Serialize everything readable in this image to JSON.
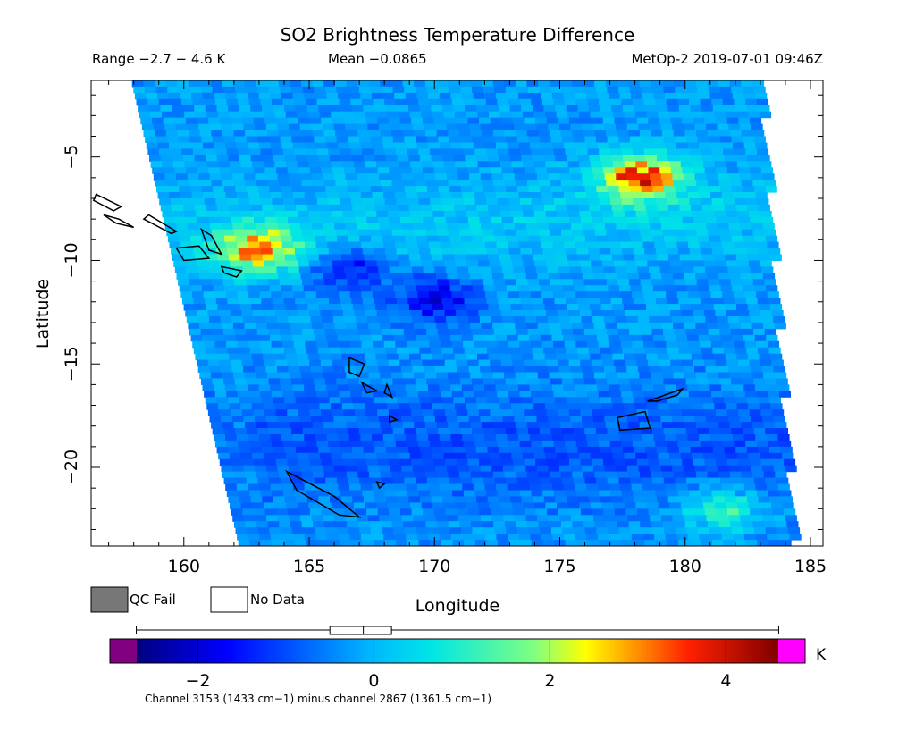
{
  "chart_data": {
    "type": "heatmap",
    "title": "SO2 Brightness Temperature Difference",
    "subtitle_left": "Range −2.7 − 4.6 K",
    "subtitle_mid": "Mean −0.0865",
    "subtitle_right": "MetOp-2 2019-07-01 09:46Z",
    "xlabel": "Longitude",
    "ylabel": "Latitude",
    "xlim": [
      156.3,
      185.5
    ],
    "ylim": [
      -23.8,
      -1.3
    ],
    "xticks": [
      160,
      165,
      170,
      175,
      180,
      185
    ],
    "yticks": [
      -5,
      -10,
      -15,
      -20
    ],
    "xtick_labels": [
      "160",
      "165",
      "170",
      "175",
      "180",
      "185"
    ],
    "ytick_labels": [
      "−5",
      "−10",
      "−15",
      "−20"
    ],
    "range": [
      -2.7,
      4.6
    ],
    "mean": -0.0865,
    "legend": {
      "qc_fail_label": "QC Fail",
      "no_data_label": "No Data",
      "qc_fail_color": "#777777",
      "no_data_color": "#ffffff"
    },
    "colorbar": {
      "min": -3.0,
      "max": 4.9,
      "data_min": -2.7,
      "data_max": 4.6,
      "ticks": [
        -2,
        0,
        2,
        4
      ],
      "tick_labels": [
        "−2",
        "0",
        "2",
        "4"
      ],
      "unit": "K",
      "caption": "Channel 3153 (1433 cm−1) minus channel 2867 (1361.5 cm−1)",
      "underflow_color": "#800080",
      "overflow_color": "#ff00ff",
      "box_q1": -0.5,
      "box_median": -0.12,
      "box_q3": 0.2
    },
    "swath": {
      "west_edge": [
        [
          157.9,
          -1.3
        ],
        [
          162.2,
          -23.8
        ]
      ],
      "east_edge": [
        [
          182.9,
          -1.3
        ],
        [
          184.2,
          -23.8
        ]
      ],
      "dominant_value": -0.3
    },
    "features": [
      {
        "lon": 178.2,
        "lat": -6.0,
        "value": 4.3
      },
      {
        "lon": 163.0,
        "lat": -9.5,
        "value": 3.5
      },
      {
        "lon": 170.0,
        "lat": -11.8,
        "value": -2.3
      },
      {
        "lon": 166.5,
        "lat": -10.5,
        "value": -1.9
      },
      {
        "lon": 181.5,
        "lat": -22.0,
        "value": 1.5
      }
    ]
  }
}
